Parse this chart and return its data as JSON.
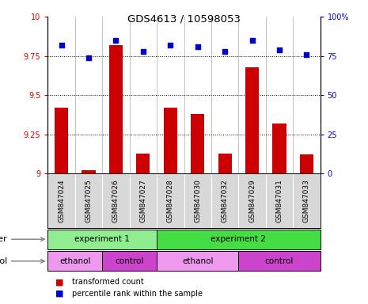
{
  "title": "GDS4613 / 10598053",
  "samples": [
    "GSM847024",
    "GSM847025",
    "GSM847026",
    "GSM847027",
    "GSM847028",
    "GSM847030",
    "GSM847032",
    "GSM847029",
    "GSM847031",
    "GSM847033"
  ],
  "bar_values": [
    9.42,
    9.02,
    9.82,
    9.13,
    9.42,
    9.38,
    9.13,
    9.68,
    9.32,
    9.12
  ],
  "scatter_values": [
    82,
    74,
    85,
    78,
    82,
    81,
    78,
    85,
    79,
    76
  ],
  "bar_color": "#cc0000",
  "scatter_color": "#0000cc",
  "ylim_left": [
    9.0,
    10.0
  ],
  "ylim_right": [
    0,
    100
  ],
  "yticks_left": [
    9.0,
    9.25,
    9.5,
    9.75,
    10.0
  ],
  "yticks_right": [
    0,
    25,
    50,
    75,
    100
  ],
  "ytick_labels_left": [
    "9",
    "9.25",
    "9.5",
    "9.75",
    "10"
  ],
  "ytick_labels_right": [
    "0",
    "25",
    "50",
    "75",
    "100%"
  ],
  "hlines": [
    9.25,
    9.5,
    9.75
  ],
  "other_row": [
    {
      "label": "experiment 1",
      "start": 0,
      "end": 4,
      "color": "#90ee90"
    },
    {
      "label": "experiment 2",
      "start": 4,
      "end": 10,
      "color": "#44dd44"
    }
  ],
  "protocol_row": [
    {
      "label": "ethanol",
      "start": 0,
      "end": 2,
      "color": "#ee99ee"
    },
    {
      "label": "control",
      "start": 2,
      "end": 4,
      "color": "#cc44cc"
    },
    {
      "label": "ethanol",
      "start": 4,
      "end": 7,
      "color": "#ee99ee"
    },
    {
      "label": "control",
      "start": 7,
      "end": 10,
      "color": "#cc44cc"
    }
  ],
  "legend_items": [
    {
      "label": "transformed count",
      "color": "#cc0000"
    },
    {
      "label": "percentile rank within the sample",
      "color": "#0000cc"
    }
  ],
  "background_color": "#ffffff",
  "bar_bottom": 9.0,
  "sample_bg_color": "#d8d8d8"
}
